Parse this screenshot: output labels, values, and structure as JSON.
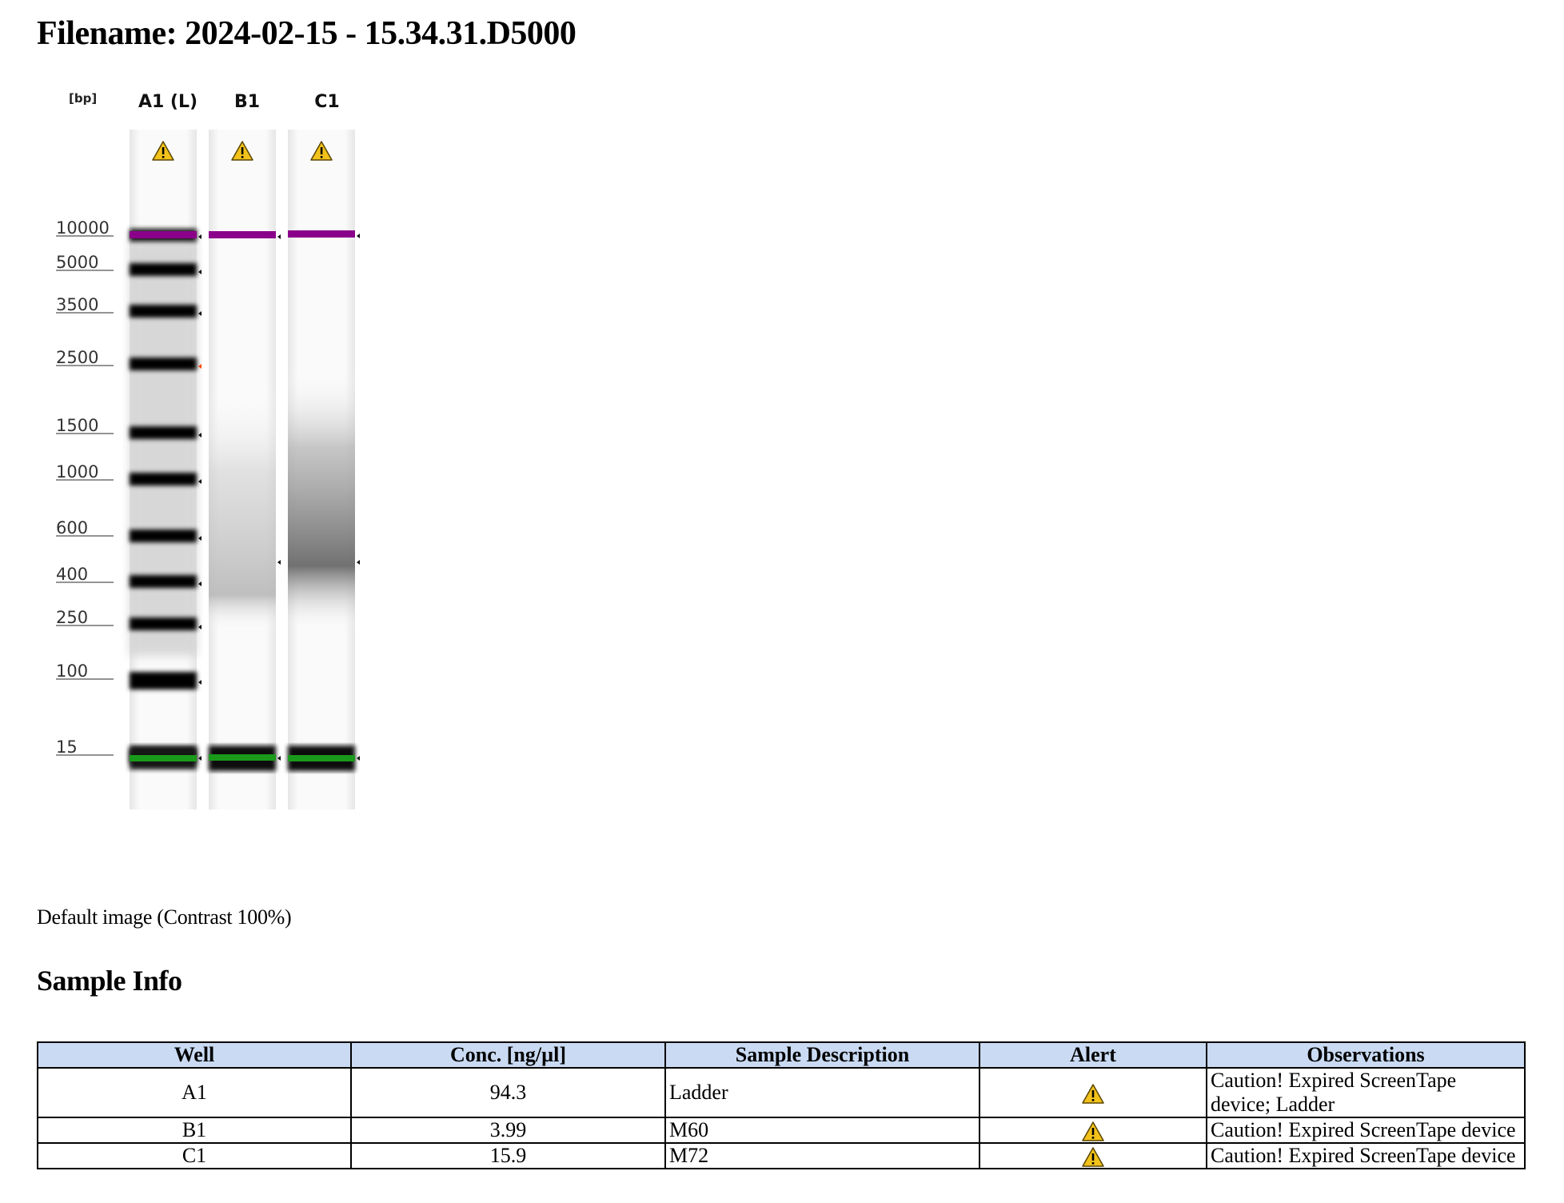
{
  "header": {
    "filename_title": "Filename: 2024-02-15 - 15.34.31.D5000"
  },
  "gel_image": {
    "unit_label": "[bp]",
    "lanes": [
      {
        "label": "A1 (L)",
        "alert_icon": "warning-icon"
      },
      {
        "label": "B1",
        "alert_icon": "warning-icon"
      },
      {
        "label": "C1",
        "alert_icon": "warning-icon"
      }
    ],
    "size_markers": [
      "10000",
      "5000",
      "3500",
      "2500",
      "1500",
      "1000",
      "600",
      "400",
      "250",
      "100",
      "15"
    ],
    "colors": {
      "upper_marker": "#8a008a",
      "lower_marker": "#1a9a1a",
      "flagged_band": "#ff4500"
    }
  },
  "caption": "Default image (Contrast 100%)",
  "sample_info": {
    "title": "Sample Info",
    "columns": [
      "Well",
      "Conc. [ng/µl]",
      "Sample Description",
      "Alert",
      "Observations"
    ],
    "rows": [
      {
        "well": "A1",
        "conc": "94.3",
        "description": "Ladder",
        "alert_icon": "warning-icon",
        "observations": "Caution! Expired ScreenTape device; Ladder"
      },
      {
        "well": "B1",
        "conc": "3.99",
        "description": "M60",
        "alert_icon": "warning-icon",
        "observations": "Caution! Expired ScreenTape device"
      },
      {
        "well": "C1",
        "conc": "15.9",
        "description": "M72",
        "alert_icon": "warning-icon",
        "observations": "Caution! Expired ScreenTape device"
      }
    ],
    "header_color": "#c9daf2"
  }
}
